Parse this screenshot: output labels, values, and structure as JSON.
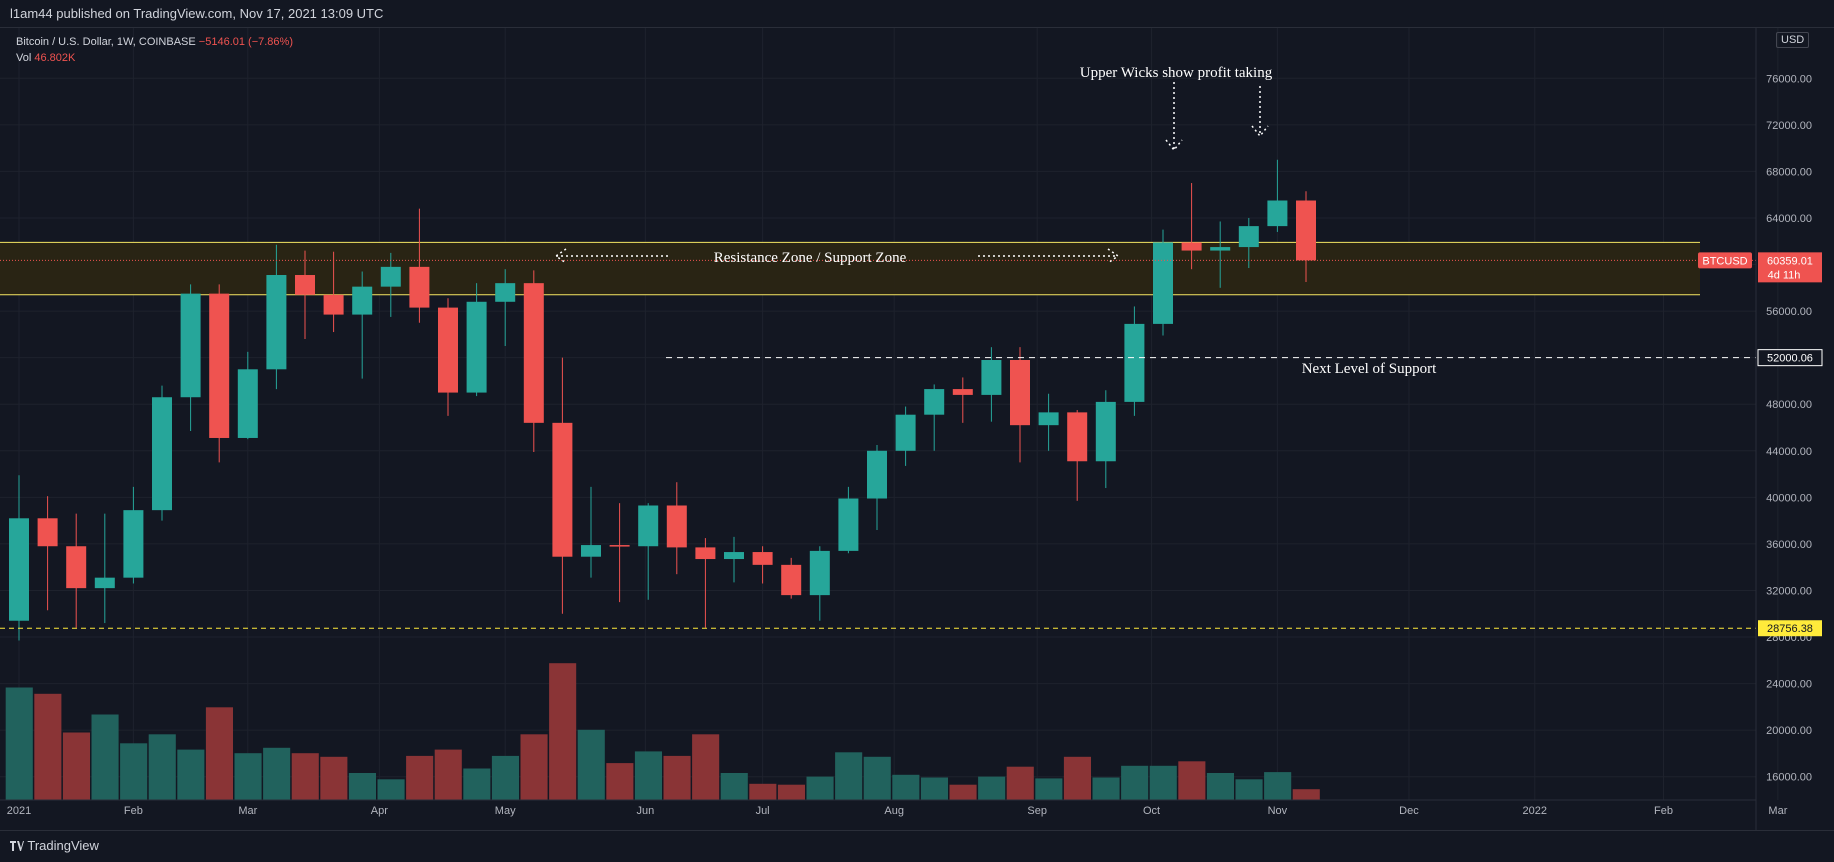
{
  "publish_line": "l1am44 published on TradingView.com, Nov 17, 2021 13:09 UTC",
  "legend": {
    "symbol": "Bitcoin / U.S. Dollar, 1W, COINBASE",
    "change": "−5146.01 (−7.86%)",
    "vol_label": "Vol",
    "vol_value": "46.802K"
  },
  "currency": "USD",
  "footer_brand": "TradingView",
  "colors": {
    "bg": "#131722",
    "grid": "#1e222d",
    "up": "#26a69a",
    "down": "#ef5350",
    "vol_up": "#21625d",
    "vol_down": "#8a3436",
    "zone_line": "#f5e663",
    "zone_fill": "#2a2514",
    "support_line": "#ffeb3b",
    "axis_text": "#b2b5be"
  },
  "chart_data": {
    "type": "candlestick",
    "interval": "1W",
    "y_axis": {
      "min": 14000,
      "max": 78000,
      "ticks": [
        "16000.00",
        "20000.00",
        "24000.00",
        "28000.00",
        "32000.00",
        "36000.00",
        "40000.00",
        "44000.00",
        "48000.00",
        "52000.00",
        "56000.00",
        "60000.00",
        "64000.00",
        "68000.00",
        "72000.00",
        "76000.00"
      ]
    },
    "x_axis_labels": [
      {
        "label": "2021",
        "index": 0
      },
      {
        "label": "Feb",
        "index": 4
      },
      {
        "label": "Mar",
        "index": 8
      },
      {
        "label": "Apr",
        "index": 12.6
      },
      {
        "label": "May",
        "index": 17
      },
      {
        "label": "Jun",
        "index": 21.9
      },
      {
        "label": "Jul",
        "index": 26
      },
      {
        "label": "Aug",
        "index": 30.6
      },
      {
        "label": "Sep",
        "index": 35.6
      },
      {
        "label": "Oct",
        "index": 39.6
      },
      {
        "label": "Nov",
        "index": 44
      },
      {
        "label": "Dec",
        "index": 48.6
      },
      {
        "label": "2022",
        "index": 53
      },
      {
        "label": "Feb",
        "index": 57.5
      },
      {
        "label": "Mar",
        "index": 61.5
      }
    ],
    "candles": [
      {
        "o": 29400,
        "h": 41900,
        "l": 27700,
        "c": 38200,
        "v": 27.5
      },
      {
        "o": 38200,
        "h": 40100,
        "l": 30300,
        "c": 35800,
        "v": 26.8
      },
      {
        "o": 35800,
        "h": 38600,
        "l": 28800,
        "c": 32200,
        "v": 22.5
      },
      {
        "o": 32200,
        "h": 38600,
        "l": 29200,
        "c": 33100,
        "v": 24.5
      },
      {
        "o": 33100,
        "h": 40900,
        "l": 32600,
        "c": 38900,
        "v": 21.3
      },
      {
        "o": 38900,
        "h": 49600,
        "l": 38000,
        "c": 48600,
        "v": 22.3
      },
      {
        "o": 48600,
        "h": 58300,
        "l": 45700,
        "c": 57500,
        "v": 20.6
      },
      {
        "o": 57500,
        "h": 58300,
        "l": 43000,
        "c": 45100,
        "v": 25.3
      },
      {
        "o": 45100,
        "h": 52500,
        "l": 45000,
        "c": 51000,
        "v": 20.2
      },
      {
        "o": 51000,
        "h": 61700,
        "l": 49300,
        "c": 59100,
        "v": 20.8
      },
      {
        "o": 59100,
        "h": 61200,
        "l": 53600,
        "c": 57400,
        "v": 20.2
      },
      {
        "o": 57400,
        "h": 61100,
        "l": 54200,
        "c": 55700,
        "v": 19.8
      },
      {
        "o": 55700,
        "h": 59400,
        "l": 50200,
        "c": 58100,
        "v": 18.0
      },
      {
        "o": 58100,
        "h": 61000,
        "l": 55500,
        "c": 59800,
        "v": 17.3
      },
      {
        "o": 59800,
        "h": 64800,
        "l": 55000,
        "c": 56300,
        "v": 19.9
      },
      {
        "o": 56300,
        "h": 57100,
        "l": 47000,
        "c": 49000,
        "v": 20.6
      },
      {
        "o": 49000,
        "h": 58400,
        "l": 48700,
        "c": 56800,
        "v": 18.5
      },
      {
        "o": 56800,
        "h": 59600,
        "l": 53000,
        "c": 58400,
        "v": 19.9
      },
      {
        "o": 58400,
        "h": 59500,
        "l": 43900,
        "c": 46400,
        "v": 22.3
      },
      {
        "o": 46400,
        "h": 52000,
        "l": 30000,
        "c": 34900,
        "v": 30.2
      },
      {
        "o": 34900,
        "h": 40900,
        "l": 33100,
        "c": 35900,
        "v": 22.8
      },
      {
        "o": 35900,
        "h": 39500,
        "l": 31000,
        "c": 35800,
        "v": 19.1
      },
      {
        "o": 35800,
        "h": 39500,
        "l": 31200,
        "c": 39300,
        "v": 20.4
      },
      {
        "o": 39300,
        "h": 41300,
        "l": 33400,
        "c": 35700,
        "v": 19.9
      },
      {
        "o": 35700,
        "h": 36500,
        "l": 28800,
        "c": 34700,
        "v": 22.3
      },
      {
        "o": 34700,
        "h": 36600,
        "l": 32700,
        "c": 35300,
        "v": 18.0
      },
      {
        "o": 35300,
        "h": 35800,
        "l": 32600,
        "c": 34200,
        "v": 16.8
      },
      {
        "o": 34200,
        "h": 34800,
        "l": 31300,
        "c": 31600,
        "v": 16.7
      },
      {
        "o": 31600,
        "h": 35800,
        "l": 29400,
        "c": 35400,
        "v": 17.6
      },
      {
        "o": 35400,
        "h": 40900,
        "l": 35200,
        "c": 39900,
        "v": 20.3
      },
      {
        "o": 39900,
        "h": 44500,
        "l": 37200,
        "c": 44000,
        "v": 19.8
      },
      {
        "o": 44000,
        "h": 47800,
        "l": 42700,
        "c": 47100,
        "v": 17.8
      },
      {
        "o": 47100,
        "h": 49700,
        "l": 44000,
        "c": 49300,
        "v": 17.5
      },
      {
        "o": 49300,
        "h": 50300,
        "l": 46400,
        "c": 48800,
        "v": 16.7
      },
      {
        "o": 48800,
        "h": 52900,
        "l": 46500,
        "c": 51800,
        "v": 17.6
      },
      {
        "o": 51800,
        "h": 52900,
        "l": 43000,
        "c": 46200,
        "v": 18.7
      },
      {
        "o": 46200,
        "h": 48900,
        "l": 44000,
        "c": 47300,
        "v": 17.4
      },
      {
        "o": 47300,
        "h": 47500,
        "l": 39700,
        "c": 43100,
        "v": 19.8
      },
      {
        "o": 43100,
        "h": 49200,
        "l": 40800,
        "c": 48200,
        "v": 17.5
      },
      {
        "o": 48200,
        "h": 56400,
        "l": 47000,
        "c": 54900,
        "v": 18.8
      },
      {
        "o": 54900,
        "h": 63000,
        "l": 53900,
        "c": 61900,
        "v": 18.8
      },
      {
        "o": 61900,
        "h": 67000,
        "l": 59600,
        "c": 61200,
        "v": 19.3
      },
      {
        "o": 61200,
        "h": 63700,
        "l": 58000,
        "c": 61500,
        "v": 18.0
      },
      {
        "o": 61500,
        "h": 64000,
        "l": 59700,
        "c": 63300,
        "v": 17.3
      },
      {
        "o": 63300,
        "h": 69000,
        "l": 62800,
        "c": 65500,
        "v": 18.1
      },
      {
        "o": 65500,
        "h": 66300,
        "l": 58500,
        "c": 60359,
        "v": 16.2
      }
    ],
    "horizontal_lines": [
      {
        "price": 61900,
        "style": "solid",
        "role": "zone-top"
      },
      {
        "price": 57400,
        "style": "solid",
        "role": "zone-bottom"
      },
      {
        "price": 52000.06,
        "label": "52000.06",
        "style": "dashed"
      },
      {
        "price": 28756.38,
        "label": "28756.38",
        "style": "dashed"
      }
    ],
    "last_price": {
      "label": "BTCUSD",
      "value": "60359.01",
      "countdown": "4d 11h"
    },
    "annotations": {
      "upper_wicks": "Upper Wicks show profit taking",
      "zone": "Resistance Zone / Support Zone",
      "next_support": "Next Level of Support"
    }
  }
}
